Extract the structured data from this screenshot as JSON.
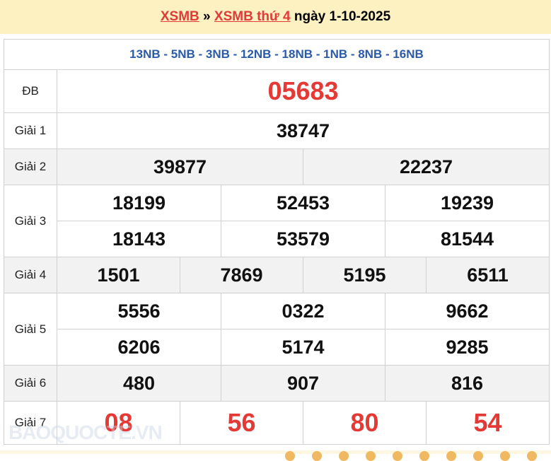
{
  "header": {
    "link1": "XSMB",
    "sep": "»",
    "link2": "XSMB thứ 4",
    "date": "ngày 1-10-2025"
  },
  "codes": "13NB - 5NB - 3NB - 12NB - 18NB - 1NB - 8NB - 16NB",
  "prizes": {
    "db": {
      "label": "ĐB",
      "numbers": [
        "05683"
      ]
    },
    "g1": {
      "label": "Giải 1",
      "numbers": [
        "38747"
      ]
    },
    "g2": {
      "label": "Giải 2",
      "numbers": [
        "39877",
        "22237"
      ]
    },
    "g3": {
      "label": "Giải 3",
      "numbers": [
        "18199",
        "52453",
        "19239",
        "18143",
        "53579",
        "81544"
      ]
    },
    "g4": {
      "label": "Giải 4",
      "numbers": [
        "1501",
        "7869",
        "5195",
        "6511"
      ]
    },
    "g5": {
      "label": "Giải 5",
      "numbers": [
        "5556",
        "0322",
        "9662",
        "6206",
        "5174",
        "9285"
      ]
    },
    "g6": {
      "label": "Giải 6",
      "numbers": [
        "480",
        "907",
        "816"
      ]
    },
    "g7": {
      "label": "Giải 7",
      "numbers": [
        "08",
        "56",
        "80",
        "54"
      ]
    }
  },
  "watermark": "BAOQUOCTE.VN",
  "colors": {
    "accent": "#e53935",
    "codes": "#2a5aa8",
    "header_bg": "#fdf1c1"
  }
}
